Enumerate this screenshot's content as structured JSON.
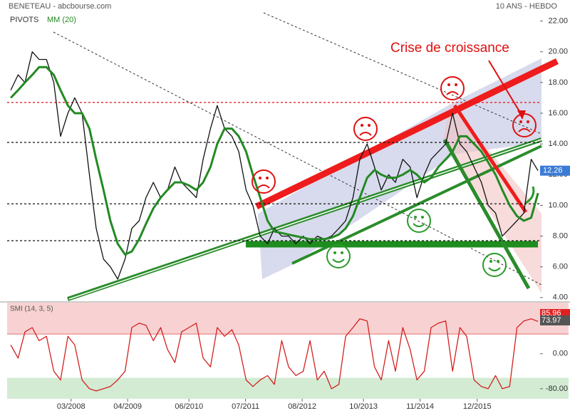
{
  "chart_data": [
    {
      "type": "line",
      "title": "BENETEAU - abcbourse.com",
      "subtitle": "10 ANS - HEBDO",
      "annotations": [
        "Crise de croissance"
      ],
      "x": [
        2007.02,
        2007.16,
        2007.29,
        2007.43,
        2007.56,
        2007.7,
        2007.84,
        2007.97,
        2008.11,
        2008.24,
        2008.38,
        2008.52,
        2008.65,
        2008.79,
        2008.92,
        2009.06,
        2009.2,
        2009.33,
        2009.47,
        2009.6,
        2009.74,
        2009.88,
        2010.01,
        2010.15,
        2010.28,
        2010.42,
        2010.56,
        2010.69,
        2010.83,
        2010.96,
        2011.1,
        2011.24,
        2011.37,
        2011.51,
        2011.64,
        2011.78,
        2011.92,
        2012.05,
        2012.19,
        2012.32,
        2012.46,
        2012.6,
        2012.73,
        2012.87,
        2013.0,
        2013.14,
        2013.28,
        2013.41,
        2013.55,
        2013.68,
        2013.82,
        2013.96,
        2014.09,
        2014.23,
        2014.36,
        2014.5,
        2014.64,
        2014.77,
        2014.91,
        2015.04,
        2015.18,
        2015.32,
        2015.45,
        2015.59,
        2015.72,
        2015.86,
        2016.0,
        2016.13,
        2016.27,
        2016.4,
        2016.54,
        2016.68,
        2016.81,
        2016.95,
        2017.08
      ],
      "series": [
        {
          "color": "#111111",
          "values": [
            17.5,
            18.5,
            18,
            20,
            19.5,
            19.5,
            18,
            14.5,
            16,
            17,
            16,
            12,
            8.5,
            6.5,
            6,
            5.2,
            6.5,
            8.5,
            9,
            10.5,
            11.5,
            10.5,
            11,
            12.5,
            11.5,
            11,
            10.5,
            13,
            15,
            16.5,
            15,
            14.5,
            13.5,
            11,
            10,
            8,
            7.5,
            8.5,
            8,
            8,
            7.5,
            8,
            7.5,
            8,
            7.8,
            8,
            8.5,
            9,
            10.5,
            13,
            14,
            12.5,
            11,
            12,
            11.5,
            13,
            12.5,
            10.5,
            12,
            13,
            13.5,
            14,
            16,
            14,
            13.5,
            12.5,
            11.5,
            10,
            9.5,
            8,
            8.5,
            9,
            9.5,
            13,
            12.26
          ]
        },
        {
          "name": "MM (20)",
          "color": "#238a23",
          "values": [
            17,
            17.5,
            18,
            18.5,
            19,
            19,
            18.5,
            17.5,
            16.5,
            16,
            16,
            15,
            13,
            11,
            9,
            7.5,
            6.8,
            7,
            7.8,
            8.8,
            9.8,
            10.5,
            11,
            11.5,
            11.5,
            11.3,
            11,
            11.5,
            12.5,
            14,
            15,
            15,
            14.5,
            13.5,
            12,
            10.5,
            9,
            8.3,
            8.2,
            8.1,
            8,
            7.9,
            7.8,
            7.8,
            7.8,
            7.9,
            8.1,
            8.5,
            9.3,
            10.5,
            11.8,
            12.3,
            12,
            11.8,
            11.8,
            12,
            12.3,
            12,
            11.5,
            11.8,
            12.5,
            13,
            13.5,
            14.5,
            14.5,
            14,
            13.5,
            12.8,
            12,
            11,
            10,
            9.3,
            9,
            9.2,
            10.8
          ]
        }
      ],
      "pivots": {
        "name": "PIVOTS",
        "levels": [
          16.7,
          14.1,
          10.1,
          7.7
        ],
        "colors": [
          "#e01010",
          "#111111",
          "#111111",
          "#111111"
        ]
      },
      "xlim": [
        2006.95,
        2017.12
      ],
      "ylim": [
        3.9,
        23.0
      ],
      "yticks": [
        {
          "value": 22,
          "label": "22.00"
        },
        {
          "value": 20,
          "label": "20.00"
        },
        {
          "value": 18,
          "label": "18.00"
        },
        {
          "value": 16,
          "label": "16.00"
        },
        {
          "value": 14,
          "label": "14.00"
        },
        {
          "value": 12,
          "label": "12.00"
        },
        {
          "value": 10,
          "label": "10.00"
        },
        {
          "value": 8,
          "label": "8.00"
        },
        {
          "value": 6,
          "label": "6.00"
        },
        {
          "value": 4,
          "label": "4.00"
        }
      ]
    },
    {
      "type": "line",
      "title": "SMI (14, 3, 5)",
      "x": [
        2007.02,
        2007.16,
        2007.29,
        2007.43,
        2007.56,
        2007.7,
        2007.84,
        2007.97,
        2008.11,
        2008.24,
        2008.38,
        2008.52,
        2008.65,
        2008.79,
        2008.92,
        2009.06,
        2009.2,
        2009.33,
        2009.47,
        2009.6,
        2009.74,
        2009.88,
        2010.01,
        2010.15,
        2010.28,
        2010.42,
        2010.56,
        2010.69,
        2010.83,
        2010.96,
        2011.1,
        2011.24,
        2011.37,
        2011.51,
        2011.64,
        2011.78,
        2011.92,
        2012.05,
        2012.19,
        2012.32,
        2012.46,
        2012.6,
        2012.73,
        2012.87,
        2013.0,
        2013.14,
        2013.28,
        2013.41,
        2013.55,
        2013.68,
        2013.82,
        2013.96,
        2014.09,
        2014.23,
        2014.36,
        2014.5,
        2014.64,
        2014.77,
        2014.91,
        2015.04,
        2015.18,
        2015.32,
        2015.45,
        2015.59,
        2015.72,
        2015.86,
        2016.0,
        2016.13,
        2016.27,
        2016.4,
        2016.54,
        2016.68,
        2016.81,
        2016.95,
        2017.08
      ],
      "series": [
        {
          "color": "#d42020",
          "values": [
            20,
            -10,
            50,
            60,
            30,
            40,
            -40,
            -60,
            40,
            20,
            -60,
            -80,
            -85,
            -80,
            -75,
            -60,
            -40,
            60,
            70,
            65,
            30,
            60,
            10,
            -20,
            50,
            60,
            70,
            -10,
            -30,
            60,
            40,
            55,
            20,
            -60,
            -75,
            -60,
            -50,
            -70,
            30,
            -30,
            -50,
            -40,
            30,
            -60,
            -40,
            -80,
            -70,
            40,
            60,
            80,
            75,
            -30,
            -60,
            30,
            -40,
            60,
            10,
            -60,
            -40,
            60,
            70,
            75,
            -40,
            60,
            40,
            -60,
            -75,
            -80,
            -50,
            -80,
            -75,
            60,
            75,
            80,
            73.97
          ]
        }
      ],
      "marker": 85.96,
      "zones": {
        "upper": 45,
        "lower": -55
      },
      "xlim": [
        2006.95,
        2017.12
      ],
      "ylim": [
        -103,
        117
      ],
      "yticks": [
        {
          "value": 0,
          "label": "0.00"
        },
        {
          "value": -80,
          "label": "-80.00"
        }
      ],
      "xticks": [
        {
          "value": 2008.17,
          "label": "03/2008"
        },
        {
          "value": 2009.25,
          "label": "04/2009"
        },
        {
          "value": 2010.42,
          "label": "06/2010"
        },
        {
          "value": 2011.5,
          "label": "07/2011"
        },
        {
          "value": 2012.58,
          "label": "08/2012"
        },
        {
          "value": 2013.75,
          "label": "10/2013"
        },
        {
          "value": 2014.83,
          "label": "11/2014"
        },
        {
          "value": 2015.92,
          "label": "12/2015"
        }
      ]
    }
  ]
}
